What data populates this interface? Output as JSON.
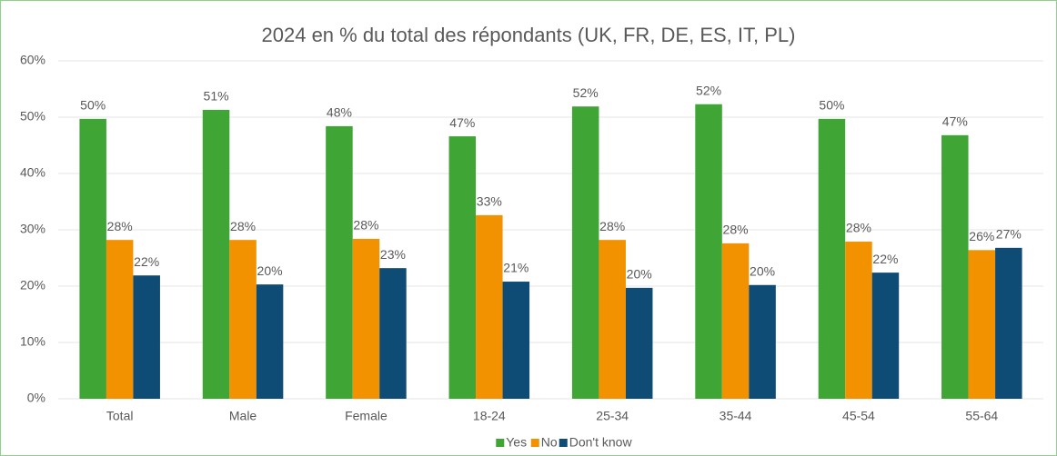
{
  "chart_data": {
    "type": "bar",
    "title": "2024 en % du total des répondants (UK, FR, DE, ES, IT, PL)",
    "categories": [
      "Total",
      "Male",
      "Female",
      "18-24",
      "25-34",
      "35-44",
      "45-54",
      "55-64"
    ],
    "series": [
      {
        "name": "Yes",
        "color": "#3fa535",
        "values": [
          49.7,
          51.3,
          48.4,
          46.6,
          51.9,
          52.3,
          49.7,
          46.8
        ],
        "value_labels": [
          "50%",
          "51%",
          "48%",
          "47%",
          "52%",
          "52%",
          "50%",
          "47%"
        ]
      },
      {
        "name": "No",
        "color": "#f39200",
        "values": [
          28.2,
          28.2,
          28.4,
          32.6,
          28.2,
          27.6,
          27.9,
          26.4
        ],
        "value_labels": [
          "28%",
          "28%",
          "28%",
          "33%",
          "28%",
          "28%",
          "28%",
          "26%"
        ]
      },
      {
        "name": "Don't know",
        "color": "#0f4c75",
        "values": [
          21.9,
          20.3,
          23.2,
          20.8,
          19.7,
          20.2,
          22.4,
          26.8
        ],
        "value_labels": [
          "22%",
          "20%",
          "23%",
          "21%",
          "20%",
          "20%",
          "22%",
          "27%"
        ]
      }
    ],
    "ylim": [
      0,
      60
    ],
    "yticks": [
      {
        "value": 0,
        "label": "0%"
      },
      {
        "value": 10,
        "label": "10%"
      },
      {
        "value": 20,
        "label": "20%"
      },
      {
        "value": 30,
        "label": "30%"
      },
      {
        "value": 40,
        "label": "40%"
      },
      {
        "value": 50,
        "label": "50%"
      },
      {
        "value": 60,
        "label": "60%"
      }
    ],
    "grid": true,
    "legend": "bottom"
  }
}
